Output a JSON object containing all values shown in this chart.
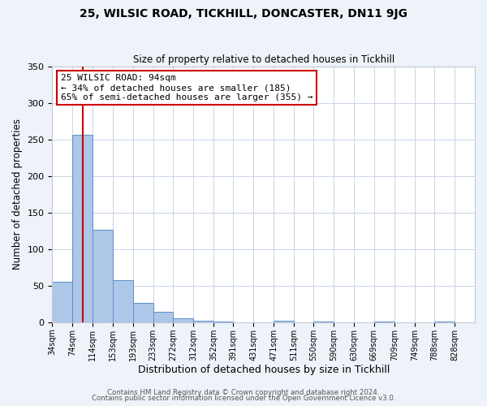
{
  "title1": "25, WILSIC ROAD, TICKHILL, DONCASTER, DN11 9JG",
  "title2": "Size of property relative to detached houses in Tickhill",
  "xlabel": "Distribution of detached houses by size in Tickhill",
  "ylabel": "Number of detached properties",
  "bar_left_edges": [
    34,
    74,
    114,
    153,
    193,
    233,
    272,
    312,
    352,
    391,
    431,
    471,
    511,
    550,
    590,
    630,
    669,
    709,
    749,
    788
  ],
  "bar_heights": [
    55,
    257,
    126,
    58,
    27,
    14,
    5,
    2,
    1,
    0,
    0,
    2,
    0,
    1,
    0,
    0,
    1,
    0,
    0,
    1
  ],
  "bar_widths": [
    40,
    40,
    39,
    40,
    40,
    39,
    40,
    40,
    39,
    40,
    40,
    40,
    39,
    40,
    40,
    39,
    40,
    40,
    39,
    40
  ],
  "bar_color": "#aec6e8",
  "bar_edge_color": "#5b8fc9",
  "property_x": 94,
  "vline_color": "#cc0000",
  "annotation_title": "25 WILSIC ROAD: 94sqm",
  "annotation_line1": "← 34% of detached houses are smaller (185)",
  "annotation_line2": "65% of semi-detached houses are larger (355) →",
  "annotation_box_color": "#ffffff",
  "annotation_box_edge": "#cc0000",
  "ylim": [
    0,
    350
  ],
  "yticks": [
    0,
    50,
    100,
    150,
    200,
    250,
    300,
    350
  ],
  "tick_labels": [
    "34sqm",
    "74sqm",
    "114sqm",
    "153sqm",
    "193sqm",
    "233sqm",
    "272sqm",
    "312sqm",
    "352sqm",
    "391sqm",
    "431sqm",
    "471sqm",
    "511sqm",
    "550sqm",
    "590sqm",
    "630sqm",
    "669sqm",
    "709sqm",
    "749sqm",
    "788sqm",
    "828sqm"
  ],
  "footer1": "Contains HM Land Registry data © Crown copyright and database right 2024.",
  "footer2": "Contains public sector information licensed under the Open Government Licence v3.0.",
  "bg_color": "#eef2f9",
  "plot_bg_color": "#ffffff",
  "grid_color": "#c8d4e8",
  "xlim_left": 34,
  "xlim_right": 868
}
